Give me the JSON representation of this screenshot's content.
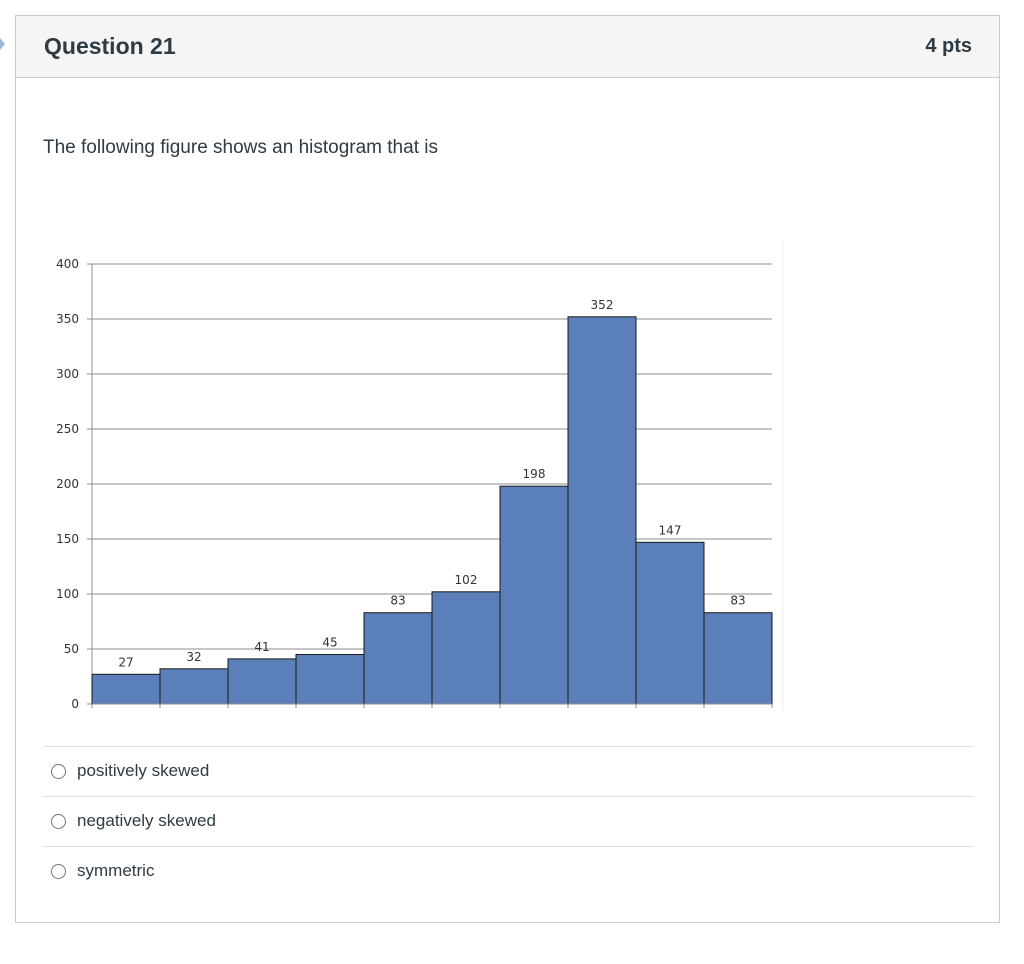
{
  "question": {
    "title": "Question 21",
    "points": "4 pts",
    "text": "The following figure shows an histogram that is"
  },
  "chart_data": {
    "type": "bar",
    "title": "",
    "xlabel": "",
    "ylabel": "",
    "ylim": [
      0,
      400
    ],
    "yticks": [
      0,
      50,
      100,
      150,
      200,
      250,
      300,
      350,
      400
    ],
    "values": [
      27,
      32,
      41,
      45,
      83,
      102,
      198,
      352,
      147,
      83
    ],
    "bar_color": "#5b7fb8",
    "bar_edge_color": "#1a1a1a",
    "grid": true
  },
  "answers": [
    {
      "label": "positively skewed",
      "selected": false
    },
    {
      "label": "negatively skewed",
      "selected": false
    },
    {
      "label": "symmetric",
      "selected": false
    }
  ]
}
